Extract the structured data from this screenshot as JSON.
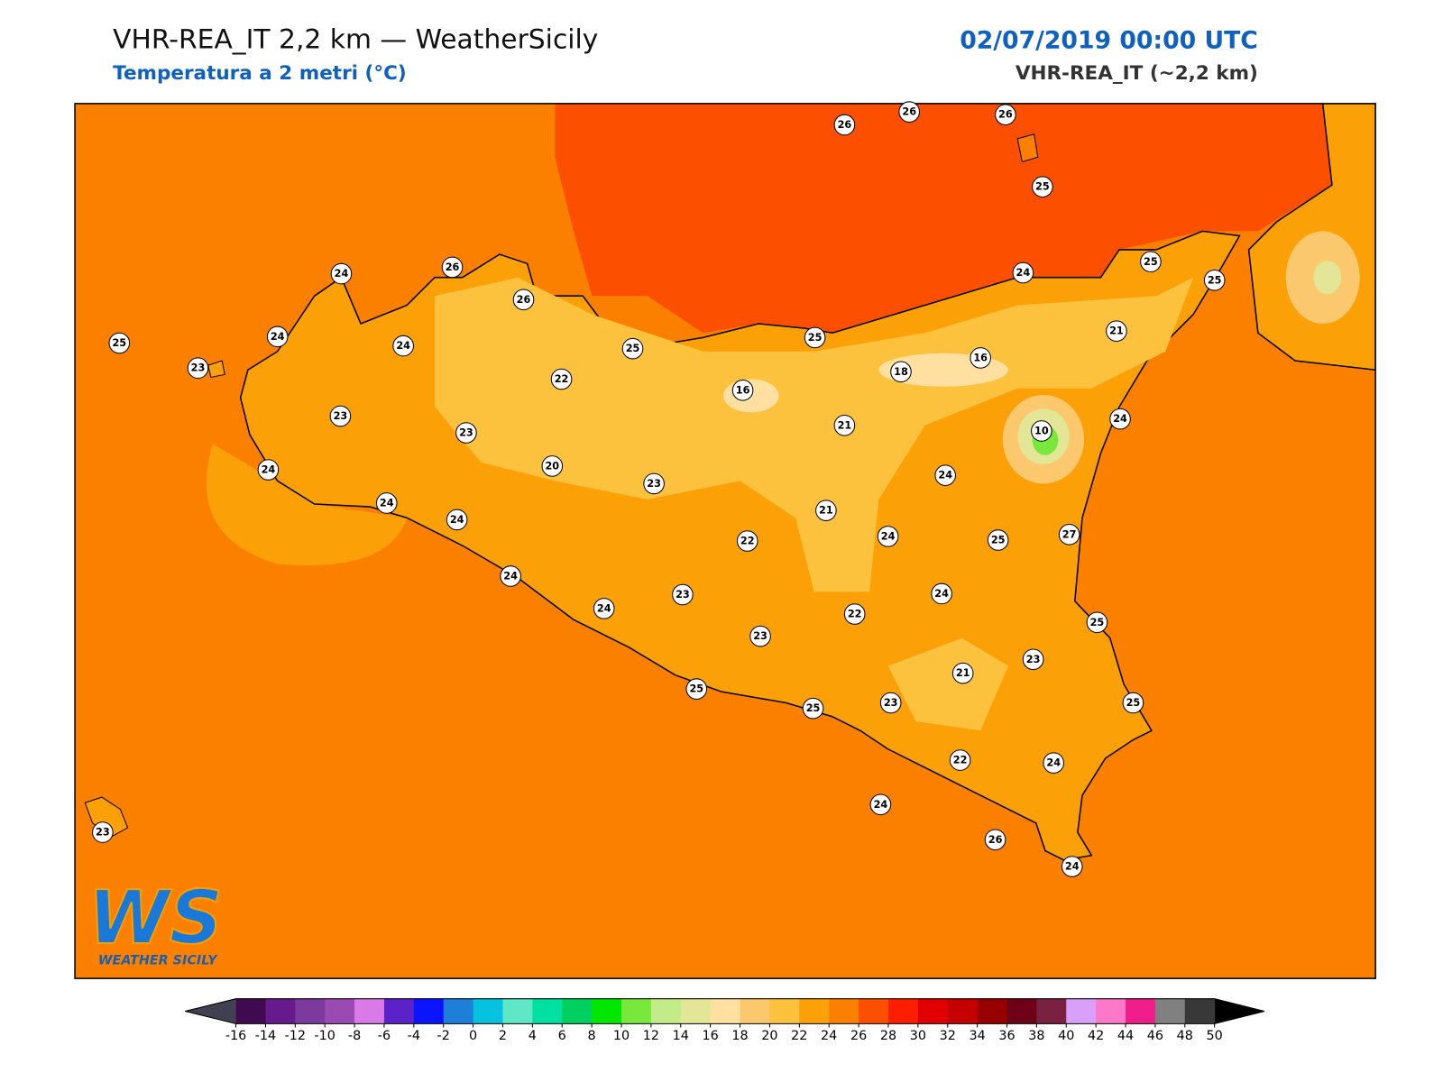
{
  "header": {
    "title": "VHR-REA_IT 2,2 km — WeatherSicily",
    "subtitle": "Temperatura a 2 metri (°C)",
    "datetime": "02/07/2019 00:00 UTC",
    "model": "VHR-REA_IT (~2,2 km)"
  },
  "map": {
    "stations": [
      26,
      26,
      26,
      25,
      24,
      26,
      26,
      25,
      24,
      25,
      25,
      23,
      24,
      24,
      22,
      25,
      25,
      21,
      16,
      18,
      16,
      23,
      23,
      21,
      10,
      24,
      24,
      20,
      23,
      24,
      24,
      24,
      21,
      22,
      24,
      25,
      27,
      24,
      24,
      23,
      24,
      22,
      23,
      25,
      23,
      21,
      25,
      25,
      23,
      25,
      22,
      24,
      24,
      26,
      24,
      23
    ]
  },
  "logo": {
    "mark": "WS",
    "name": "WEATHER SICILY"
  },
  "colorbar": {
    "ticks": [
      -16,
      -14,
      -12,
      -10,
      -8,
      -6,
      -4,
      -2,
      0,
      2,
      4,
      6,
      8,
      10,
      12,
      14,
      16,
      18,
      20,
      22,
      24,
      26,
      28,
      30,
      32,
      34,
      36,
      38,
      40,
      42,
      44,
      46,
      48,
      50
    ],
    "colors": [
      "#3f0a4f",
      "#661a8c",
      "#7d3a9e",
      "#9a4bb3",
      "#d97ae8",
      "#5a22c8",
      "#0a14ff",
      "#1e7fd9",
      "#05c2e0",
      "#5ee8c8",
      "#00e0a0",
      "#00d060",
      "#00e800",
      "#78e83c",
      "#c2ec8a",
      "#e2e696",
      "#ffe0a0",
      "#fcc86e",
      "#fcc23e",
      "#fca008",
      "#fc8000",
      "#fc5000",
      "#fc1e00",
      "#e00000",
      "#c40000",
      "#980000",
      "#6e0018",
      "#7a2040",
      "#d8a0f8",
      "#fc78c8",
      "#f01e8a",
      "#808080",
      "#383838"
    ],
    "under_color": "#404050",
    "over_color": "#000000"
  }
}
